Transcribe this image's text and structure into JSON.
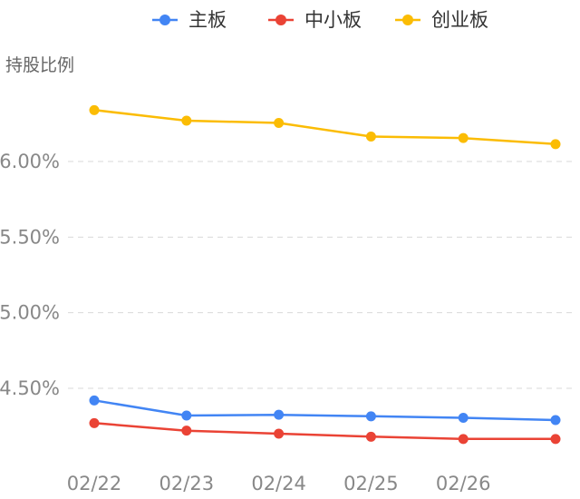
{
  "chart_data": {
    "type": "line",
    "title": "",
    "ylabel": "持股比例",
    "xlabel": "",
    "x": [
      "02/22",
      "02/23",
      "02/24",
      "02/25",
      "02/26",
      ""
    ],
    "x_tick_labels": [
      "02/22",
      "02/23",
      "02/24",
      "02/25",
      "02/26"
    ],
    "y_ticks": [
      "4.50%",
      "5.00%",
      "5.50%",
      "6.00%"
    ],
    "y_tick_values": [
      4.5,
      5.0,
      5.5,
      6.0
    ],
    "ylim": [
      4.25,
      6.45
    ],
    "grid": true,
    "legend_position": "top-center",
    "series": [
      {
        "name": "主板",
        "color": "#4285f4",
        "values": [
          4.42,
          4.32,
          4.325,
          4.315,
          4.305,
          4.29
        ]
      },
      {
        "name": "中小板",
        "color": "#ea4335",
        "values": [
          4.27,
          4.22,
          4.2,
          4.18,
          4.165,
          4.165
        ]
      },
      {
        "name": "创业板",
        "color": "#fbbc04",
        "values": [
          6.34,
          6.27,
          6.255,
          6.165,
          6.155,
          6.115
        ]
      }
    ]
  }
}
